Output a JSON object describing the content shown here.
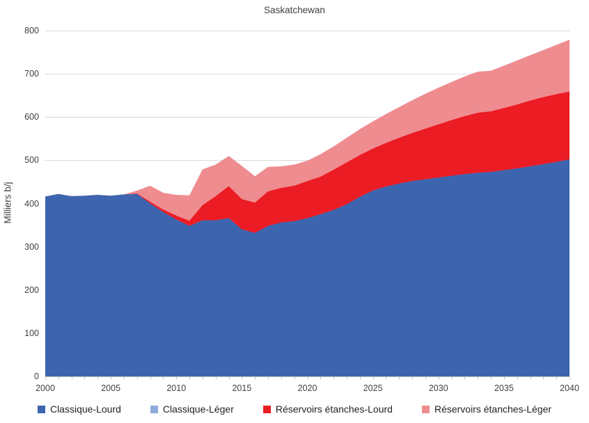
{
  "title": "Saskatchewan",
  "y_axis": {
    "label": "Milliers b/j",
    "ticks": [
      0,
      100,
      200,
      300,
      400,
      500,
      600,
      700,
      800
    ]
  },
  "x_axis": {
    "ticks": [
      2000,
      2005,
      2010,
      2015,
      2020,
      2025,
      2030,
      2035,
      2040
    ]
  },
  "legend": [
    {
      "label": "Classique-Lourd",
      "color": "#3D64AF"
    },
    {
      "label": "Classique-Léger",
      "color": "#8FAADC"
    },
    {
      "label": "Réservoirs étanches-Lourd",
      "color": "#EB1C24"
    },
    {
      "label": "Réservoirs étanches-Léger",
      "color": "#EF8C90"
    }
  ],
  "colors": {
    "gridline": "#D9D9D9",
    "axis": "#BFBFBF",
    "tick_text": "#404040"
  },
  "chart_data": {
    "type": "area",
    "stacked": true,
    "title": "Saskatchewan",
    "xlabel": "",
    "ylabel": "Milliers b/j",
    "xlim": [
      2000,
      2040
    ],
    "ylim": [
      0,
      800
    ],
    "grid": true,
    "legend_position": "bottom",
    "x": [
      2000,
      2001,
      2002,
      2003,
      2004,
      2005,
      2006,
      2007,
      2008,
      2009,
      2010,
      2011,
      2012,
      2013,
      2014,
      2015,
      2016,
      2017,
      2018,
      2019,
      2020,
      2021,
      2022,
      2023,
      2024,
      2025,
      2026,
      2027,
      2028,
      2029,
      2030,
      2031,
      2032,
      2033,
      2034,
      2035,
      2036,
      2037,
      2038,
      2039,
      2040
    ],
    "series": [
      {
        "name": "Classique-Lourd",
        "color": "#3D64AF",
        "values": [
          416,
          422,
          417,
          418,
          420,
          418,
          421,
          422,
          400,
          380,
          363,
          348,
          361,
          361,
          366,
          340,
          332,
          348,
          356,
          359,
          366,
          375,
          385,
          398,
          415,
          430,
          439,
          446,
          452,
          456,
          460,
          464,
          468,
          471,
          473,
          477,
          481,
          486,
          491,
          496,
          502
        ]
      },
      {
        "name": "Classique-Léger",
        "color": "#8FAADC",
        "values": [
          0,
          0,
          0,
          0,
          0,
          0,
          0,
          0,
          0,
          0,
          0,
          0,
          0,
          0,
          0,
          0,
          0,
          0,
          0,
          0,
          0,
          0,
          0,
          0,
          0,
          0,
          0,
          0,
          0,
          0,
          0,
          0,
          0,
          0,
          0,
          0,
          0,
          0,
          0,
          0,
          0
        ]
      },
      {
        "name": "Réservoirs étanches-Lourd",
        "color": "#EB1C24",
        "values": [
          0,
          0,
          0,
          0,
          0,
          0,
          0,
          1,
          4,
          6,
          9,
          12,
          35,
          56,
          74,
          70,
          70,
          80,
          80,
          82,
          86,
          87,
          93,
          97,
          97,
          97,
          101,
          106,
          111,
          117,
          123,
          129,
          134,
          139,
          140,
          144,
          148,
          152,
          155,
          157,
          157
        ]
      },
      {
        "name": "Réservoirs étanches-Léger",
        "color": "#EF8C90",
        "values": [
          0,
          0,
          0,
          0,
          0,
          0,
          0,
          7,
          37,
          39,
          48,
          59,
          83,
          73,
          70,
          77,
          61,
          57,
          50,
          49,
          47,
          52,
          54,
          57,
          60,
          63,
          67,
          71,
          76,
          81,
          85,
          88,
          92,
          95,
          94,
          98,
          102,
          105,
          109,
          114,
          120
        ]
      }
    ]
  }
}
